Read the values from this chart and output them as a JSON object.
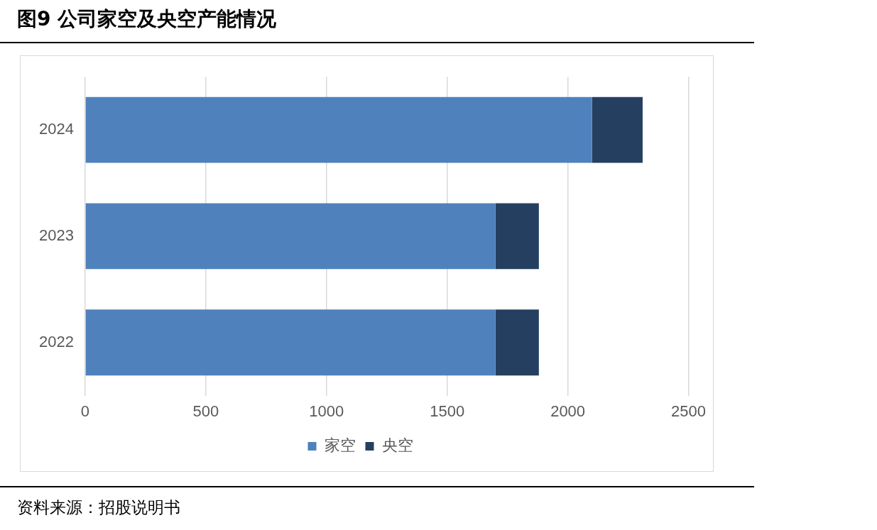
{
  "chart_data": {
    "type": "bar",
    "title": "图9  公司家空及央空产能情况",
    "orientation": "horizontal",
    "stacked": true,
    "categories": [
      "2024",
      "2023",
      "2022"
    ],
    "series": [
      {
        "name": "家空",
        "color": "#4f81bd",
        "values": [
          2100,
          1700,
          1700
        ]
      },
      {
        "name": "央空",
        "color": "#243f60",
        "values": [
          210,
          180,
          180
        ]
      }
    ],
    "xlim": [
      0,
      2500
    ],
    "xticks": [
      0,
      500,
      1000,
      1500,
      2000,
      2500
    ],
    "grid": "x",
    "legend": "bottom",
    "annotations": [
      "资料来源：招股说明书"
    ]
  }
}
